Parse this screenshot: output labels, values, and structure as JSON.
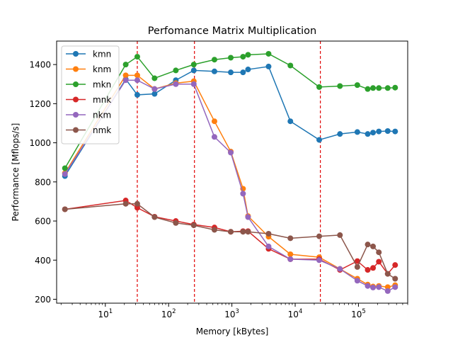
{
  "chart_data": {
    "type": "line",
    "title": "Perfomance Matrix Multiplication",
    "xlabel": "Memory [kBytes]",
    "ylabel": "Performance [Mflops/s]",
    "xscale": "log",
    "xlim": [
      1.7,
      600000
    ],
    "ylim": [
      180,
      1520
    ],
    "x_ticks": [
      {
        "value": 10,
        "base": "10",
        "exp": "1"
      },
      {
        "value": 100,
        "base": "10",
        "exp": "2"
      },
      {
        "value": 1000,
        "base": "10",
        "exp": "3"
      },
      {
        "value": 10000,
        "base": "10",
        "exp": "4"
      },
      {
        "value": 100000,
        "base": "10",
        "exp": "5"
      }
    ],
    "y_ticks": [
      "200",
      "400",
      "600",
      "800",
      "1000",
      "1200",
      "1400"
    ],
    "grid": false,
    "legend_position": "top-left",
    "vlines": [
      {
        "x": 32,
        "color": "#e00000",
        "style": "dashed"
      },
      {
        "x": 256,
        "color": "#e00000",
        "style": "dashed"
      },
      {
        "x": 25000,
        "color": "#e00000",
        "style": "dashed"
      }
    ],
    "x": [
      2.3,
      21,
      32,
      60,
      130,
      250,
      530,
      960,
      1500,
      1800,
      3800,
      8400,
      24000,
      51000,
      96000,
      140000,
      170000,
      210000,
      290000,
      380000
    ],
    "series": [
      {
        "name": "kmn",
        "color": "#1f77b4",
        "values": [
          830,
          1325,
          1245,
          1250,
          1320,
          1370,
          1365,
          1360,
          1360,
          1375,
          1390,
          1110,
          1015,
          1045,
          1055,
          1045,
          1052,
          1058,
          1060,
          1058
        ]
      },
      {
        "name": "knm",
        "color": "#ff7f0e",
        "values": [
          845,
          1345,
          1345,
          1275,
          1305,
          1315,
          1110,
          955,
          765,
          625,
          520,
          430,
          415,
          355,
          305,
          275,
          265,
          268,
          262,
          272
        ]
      },
      {
        "name": "mkn",
        "color": "#2ca02c",
        "values": [
          870,
          1400,
          1440,
          1330,
          1370,
          1400,
          1425,
          1435,
          1440,
          1450,
          1455,
          1395,
          1285,
          1290,
          1295,
          1275,
          1280,
          1280,
          1280,
          1282
        ]
      },
      {
        "name": "mnk",
        "color": "#d62728",
        "values": [
          660,
          705,
          668,
          622,
          600,
          582,
          567,
          545,
          548,
          548,
          458,
          405,
          405,
          350,
          395,
          350,
          360,
          392,
          330,
          375
        ]
      },
      {
        "name": "nkm",
        "color": "#9467bd",
        "values": [
          840,
          1320,
          1320,
          1275,
          1300,
          1300,
          1030,
          950,
          740,
          620,
          470,
          405,
          400,
          355,
          295,
          268,
          260,
          262,
          242,
          262
        ]
      },
      {
        "name": "nmk",
        "color": "#8c564b",
        "values": [
          660,
          688,
          688,
          620,
          590,
          578,
          555,
          545,
          545,
          545,
          535,
          512,
          522,
          528,
          365,
          480,
          470,
          440,
          330,
          305
        ]
      }
    ]
  }
}
